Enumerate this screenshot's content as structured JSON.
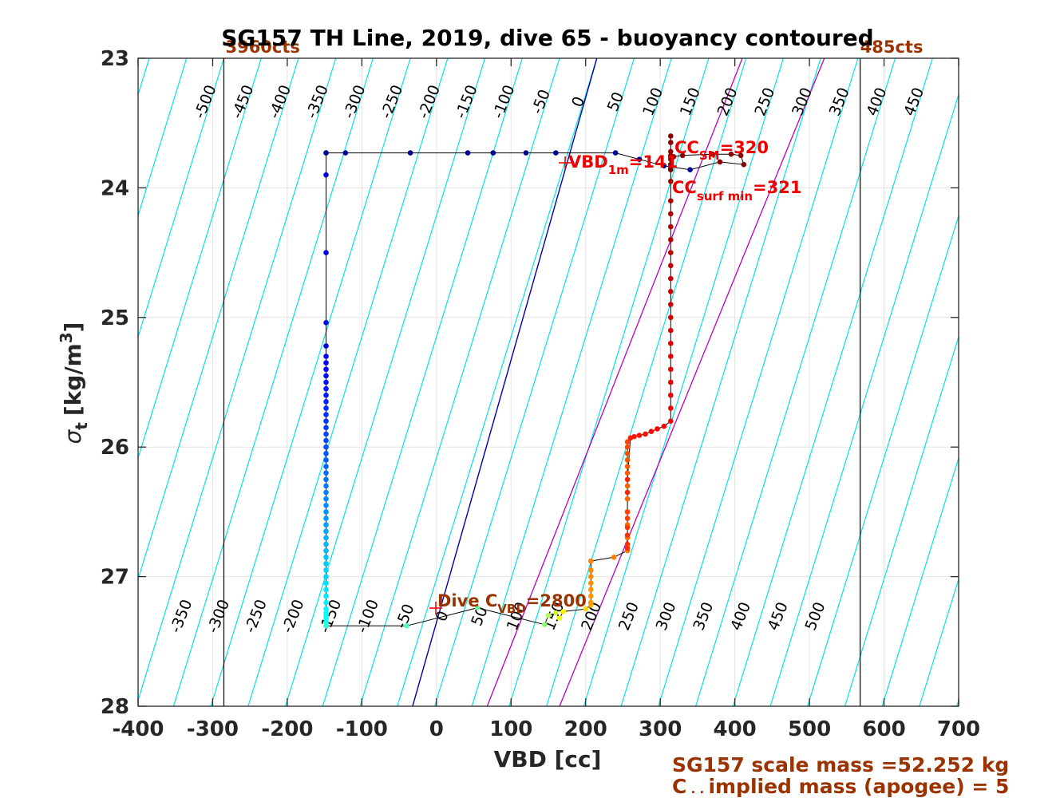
{
  "chart_data": {
    "type": "scatter",
    "title": "SG157 TH Line, 2019, dive 65 - buoyancy contoured",
    "xlabel": "VBD [cc]",
    "ylabel": "σt [kg/m³]",
    "ylabel_main": "σ",
    "ylabel_sub": "t",
    "ylabel_unit": "[kg/m",
    "ylabel_sup": "3",
    "ylabel_end": "]",
    "xlim": [
      -400,
      700
    ],
    "ylim": [
      23,
      28
    ],
    "y_reversed": true,
    "xticks": [
      -400,
      -300,
      -200,
      -100,
      0,
      100,
      200,
      300,
      400,
      500,
      600,
      700
    ],
    "xtick_labels": [
      "-400",
      "-300",
      "-200",
      "-100",
      "0",
      "100",
      "200",
      "300",
      "400",
      "500",
      "600",
      "700"
    ],
    "yticks": [
      23,
      24,
      25,
      26,
      27,
      28
    ],
    "ytick_labels": [
      "23",
      "24",
      "25",
      "26",
      "27",
      "28"
    ],
    "grid": true,
    "count_limits": [
      {
        "x": -285,
        "label": "3960cts"
      },
      {
        "x": 568,
        "label": "485cts"
      }
    ],
    "contours": {
      "color": "#00e5e5",
      "top_labels": [
        "-500",
        "-450",
        "-400",
        "-350",
        "-300",
        "-250",
        "-200",
        "-150",
        "-100",
        "-50",
        "0",
        "50",
        "100",
        "150",
        "200",
        "250",
        "300",
        "350",
        "400",
        "450",
        "500"
      ],
      "bottom_labels": [
        "-350",
        "-300",
        "-250",
        "-200",
        "-150",
        "-100",
        "-50",
        "0",
        "50",
        "100",
        "150",
        "200",
        "250",
        "300",
        "350",
        "400",
        "450",
        "500"
      ]
    },
    "neutral_line": {
      "color": "#0000aa",
      "x_at_top": 215,
      "x_at_bottom": -32
    },
    "magenta_lines": [
      {
        "color": "#bb00bb",
        "x_at_top": 410,
        "x_at_bottom": 68
      },
      {
        "color": "#bb00bb",
        "x_at_top": 520,
        "x_at_bottom": 165
      }
    ],
    "series": [
      {
        "color_scale": "jet",
        "descent_x": [
          -148,
          -148,
          -148,
          -148,
          -148,
          -148,
          -148,
          -148,
          -148,
          -148,
          -148,
          -148,
          -148,
          -148,
          -148,
          -148,
          -148,
          -148,
          -148,
          -148,
          -148,
          -148,
          -148,
          -148,
          -148,
          -148,
          -148,
          -148,
          -148,
          -148,
          -148,
          -148,
          -148,
          -148,
          -148,
          -148,
          -148,
          -148,
          -148,
          -148,
          -148,
          -148,
          -148,
          -148,
          -148,
          -148,
          -148,
          -148,
          -148,
          -148
        ],
        "descent_y": [
          23.73,
          23.9,
          24.5,
          25.04,
          25.22,
          25.3,
          25.35,
          25.4,
          25.45,
          25.5,
          25.55,
          25.6,
          25.65,
          25.7,
          25.75,
          25.8,
          25.85,
          25.9,
          25.95,
          26.0,
          26.05,
          26.1,
          26.15,
          26.2,
          26.25,
          26.3,
          26.35,
          26.4,
          26.45,
          26.5,
          26.55,
          26.6,
          26.65,
          26.7,
          26.75,
          26.8,
          26.85,
          26.9,
          26.95,
          27.0,
          27.05,
          27.1,
          27.15,
          27.2,
          27.25,
          27.28,
          27.3,
          27.32,
          27.35,
          27.38
        ],
        "bottom_x": [
          -148,
          -40,
          55,
          145,
          150,
          160,
          165,
          170,
          200,
          207
        ],
        "bottom_y": [
          27.38,
          27.38,
          27.24,
          27.37,
          27.3,
          27.28,
          27.32,
          27.27,
          27.25,
          27.22
        ],
        "ascent_x": [
          207,
          207,
          207,
          207,
          207,
          207,
          207,
          238,
          256,
          256,
          256,
          256,
          256,
          256,
          256,
          256,
          256,
          256,
          256,
          256,
          256,
          256,
          256,
          256,
          256,
          256,
          256,
          256,
          260,
          265,
          272,
          280,
          288,
          296,
          305,
          314,
          314,
          314,
          314,
          314,
          314,
          314,
          314,
          314,
          314,
          314,
          314,
          314,
          314,
          314,
          314,
          314,
          314,
          314,
          314,
          314,
          314,
          314,
          314,
          314,
          314,
          314
        ],
        "ascent_y": [
          27.2,
          27.15,
          27.1,
          27.05,
          27.0,
          26.95,
          26.88,
          26.85,
          26.8,
          26.7,
          26.6,
          26.5,
          26.4,
          26.3,
          26.2,
          26.15,
          26.1,
          26.05,
          26.0,
          25.96,
          26.5,
          26.55,
          26.62,
          26.68,
          26.75,
          26.78,
          26.35,
          26.25,
          25.93,
          25.92,
          25.91,
          25.9,
          25.88,
          25.86,
          25.84,
          25.8,
          25.7,
          25.6,
          25.5,
          25.4,
          25.3,
          25.2,
          25.1,
          25.0,
          24.9,
          24.8,
          24.7,
          24.6,
          24.5,
          24.4,
          24.3,
          24.2,
          24.1,
          23.95,
          23.85,
          23.78,
          23.75,
          23.72,
          23.65,
          23.6,
          23.82,
          23.86
        ],
        "surface_x": [
          -148,
          -122,
          -35,
          42,
          76,
          120,
          160,
          240,
          272,
          305,
          340,
          380,
          412,
          408,
          395,
          370,
          330,
          318
        ],
        "surface_y": [
          23.73,
          23.73,
          23.73,
          23.73,
          23.73,
          23.73,
          23.73,
          23.73,
          23.78,
          23.83,
          23.86,
          23.8,
          23.82,
          23.75,
          23.74,
          23.74,
          23.75,
          23.76
        ]
      }
    ],
    "annotations": [
      {
        "text": "VBD",
        "sub": "1m",
        "rest": "=141",
        "color": "#ee0000"
      },
      {
        "text": "CC",
        "sub": "SM",
        "rest": "=320",
        "color": "#ee0000"
      },
      {
        "text": "CC",
        "sub": "surf min",
        "rest": "=321",
        "color": "#ee0000"
      },
      {
        "text": "Dive C",
        "sub": "VBD",
        "rest": "=2800",
        "color": "#9a3300"
      }
    ]
  },
  "footer": {
    "line1": "SG157 scale mass =52.252 kg",
    "line2_main": "C",
    "line2_rest": "implied mass (apogee) = 5"
  }
}
